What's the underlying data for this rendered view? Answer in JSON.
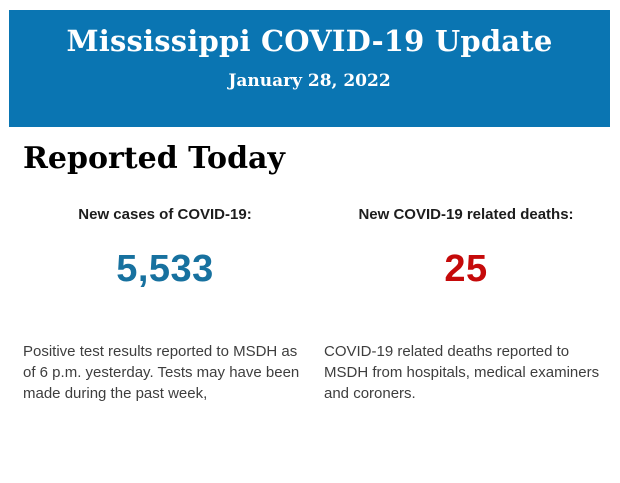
{
  "header": {
    "title": "Mississippi COVID-19 Update",
    "date": "January 28, 2022",
    "background_color": "#0a75b2",
    "text_color": "#ffffff"
  },
  "section": {
    "heading": "Reported Today"
  },
  "stats": {
    "cases": {
      "label": "New cases of COVID-19:",
      "value": "5,533",
      "value_color": "#17719f",
      "description": "Positive test results reported to MSDH as of 6 p.m. yesterday. Tests may have been made during the past week,"
    },
    "deaths": {
      "label": "New COVID-19 related deaths:",
      "value": "25",
      "value_color": "#c50a0a",
      "description": "COVID-19 related deaths reported to MSDH from hospitals, medical examiners and coroners."
    }
  }
}
